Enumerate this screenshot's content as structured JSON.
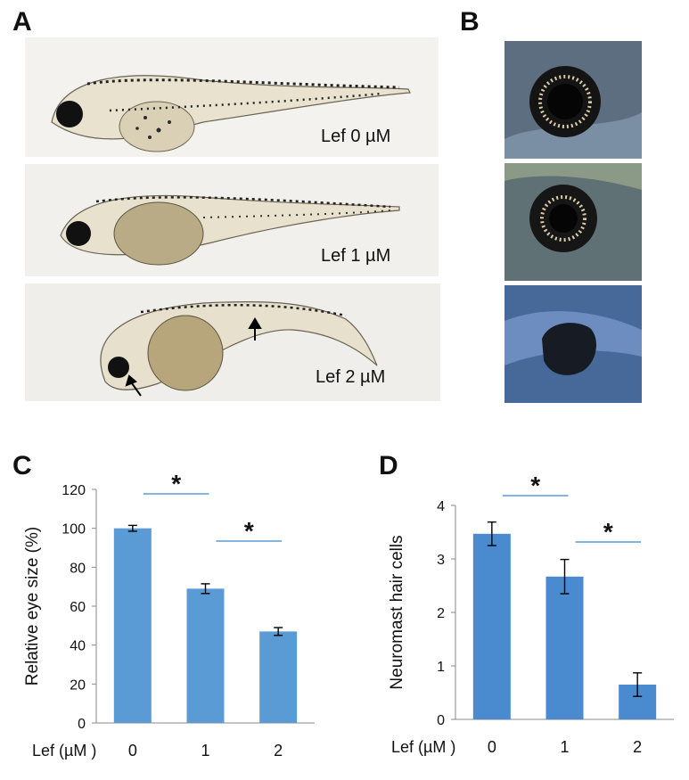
{
  "panels": {
    "A": {
      "letter": "A",
      "images": [
        {
          "label": "Lef 0 µM"
        },
        {
          "label": "Lef 1 µM"
        },
        {
          "label": "Lef 2 µM"
        }
      ]
    },
    "B": {
      "letter": "B"
    },
    "C": {
      "letter": "C"
    },
    "D": {
      "letter": "D"
    }
  },
  "chart_data": [
    {
      "type": "bar",
      "panel": "C",
      "categories": [
        "0",
        "1",
        "2"
      ],
      "values": [
        100,
        69,
        47
      ],
      "errors": [
        1.5,
        2.5,
        2
      ],
      "ylabel": "Relative eye size (%)",
      "xlabel": "Lef (µM )",
      "ylim": [
        0,
        120
      ],
      "yticks": [
        "0",
        "20",
        "40",
        "60",
        "80",
        "100",
        "120"
      ],
      "significance": [
        {
          "from": "0",
          "to": "1",
          "label": "*"
        },
        {
          "from": "1",
          "to": "2",
          "label": "*"
        }
      ],
      "bar_color": "#5b9bd5",
      "grid": false
    },
    {
      "type": "bar",
      "panel": "D",
      "categories": [
        "0",
        "1",
        "2"
      ],
      "values": [
        3.47,
        2.67,
        0.65
      ],
      "errors": [
        0.22,
        0.32,
        0.22
      ],
      "ylabel": "Neuromast hair cells",
      "xlabel": "Lef (µM )",
      "ylim": [
        0,
        4
      ],
      "yticks": [
        "0",
        "1",
        "2",
        "3",
        "4"
      ],
      "significance": [
        {
          "from": "0",
          "to": "1",
          "label": "*"
        },
        {
          "from": "1",
          "to": "2",
          "label": "*"
        }
      ],
      "bar_color": "#4a8bd0",
      "grid": false
    }
  ]
}
